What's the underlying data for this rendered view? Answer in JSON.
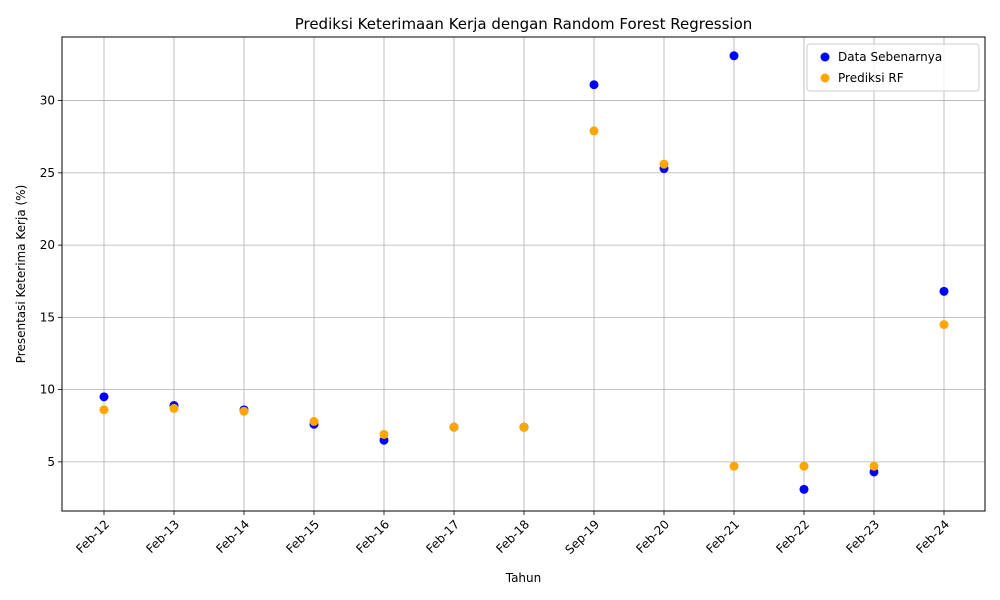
{
  "chart_data": {
    "type": "scatter",
    "title": "Prediksi Keterimaan Kerja dengan Random Forest Regression",
    "xlabel": "Tahun",
    "ylabel": "Presentasi Keterima Kerja (%)",
    "categories": [
      "Feb-12",
      "Feb-13",
      "Feb-14",
      "Feb-15",
      "Feb-16",
      "Feb-17",
      "Feb-18",
      "Sep-19",
      "Feb-20",
      "Feb-21",
      "Feb-22",
      "Feb-23",
      "Feb-24"
    ],
    "ylim": [
      1.6,
      34.4
    ],
    "yticks": [
      5,
      10,
      15,
      20,
      25,
      30
    ],
    "grid": true,
    "legend_position": "top-right",
    "series": [
      {
        "name": "Data Sebenarnya",
        "color": "#0000ff",
        "values": [
          9.5,
          8.9,
          8.6,
          7.6,
          6.5,
          7.4,
          7.4,
          31.1,
          25.3,
          33.1,
          3.1,
          4.3,
          16.8
        ]
      },
      {
        "name": "Prediksi RF",
        "color": "#ffa500",
        "values": [
          8.6,
          8.7,
          8.5,
          7.8,
          6.9,
          7.4,
          7.4,
          27.9,
          25.6,
          4.7,
          4.7,
          4.7,
          14.5
        ]
      }
    ]
  }
}
